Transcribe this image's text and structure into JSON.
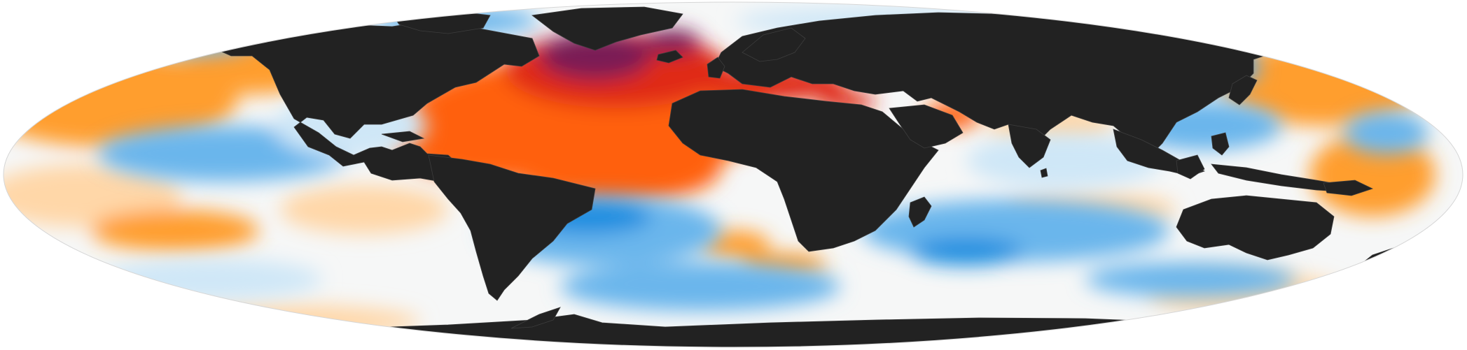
{
  "map": {
    "projection": "mollweide",
    "colors": {
      "background": "#ffffff",
      "land": "#222222",
      "land_border": "#3d3d3d",
      "ocean_neutral": "#f6f7f7",
      "warm_light": "#ffd7a8",
      "warm": "#ff9e2f",
      "hot": "#ff6010",
      "very_hot": "#e02a12",
      "extreme": "#7a1a54",
      "cool_light": "#cfe7f7",
      "cool": "#6ab6ec",
      "cold": "#1d8ee0",
      "very_cold": "#1a3aa8"
    },
    "legend": null
  }
}
